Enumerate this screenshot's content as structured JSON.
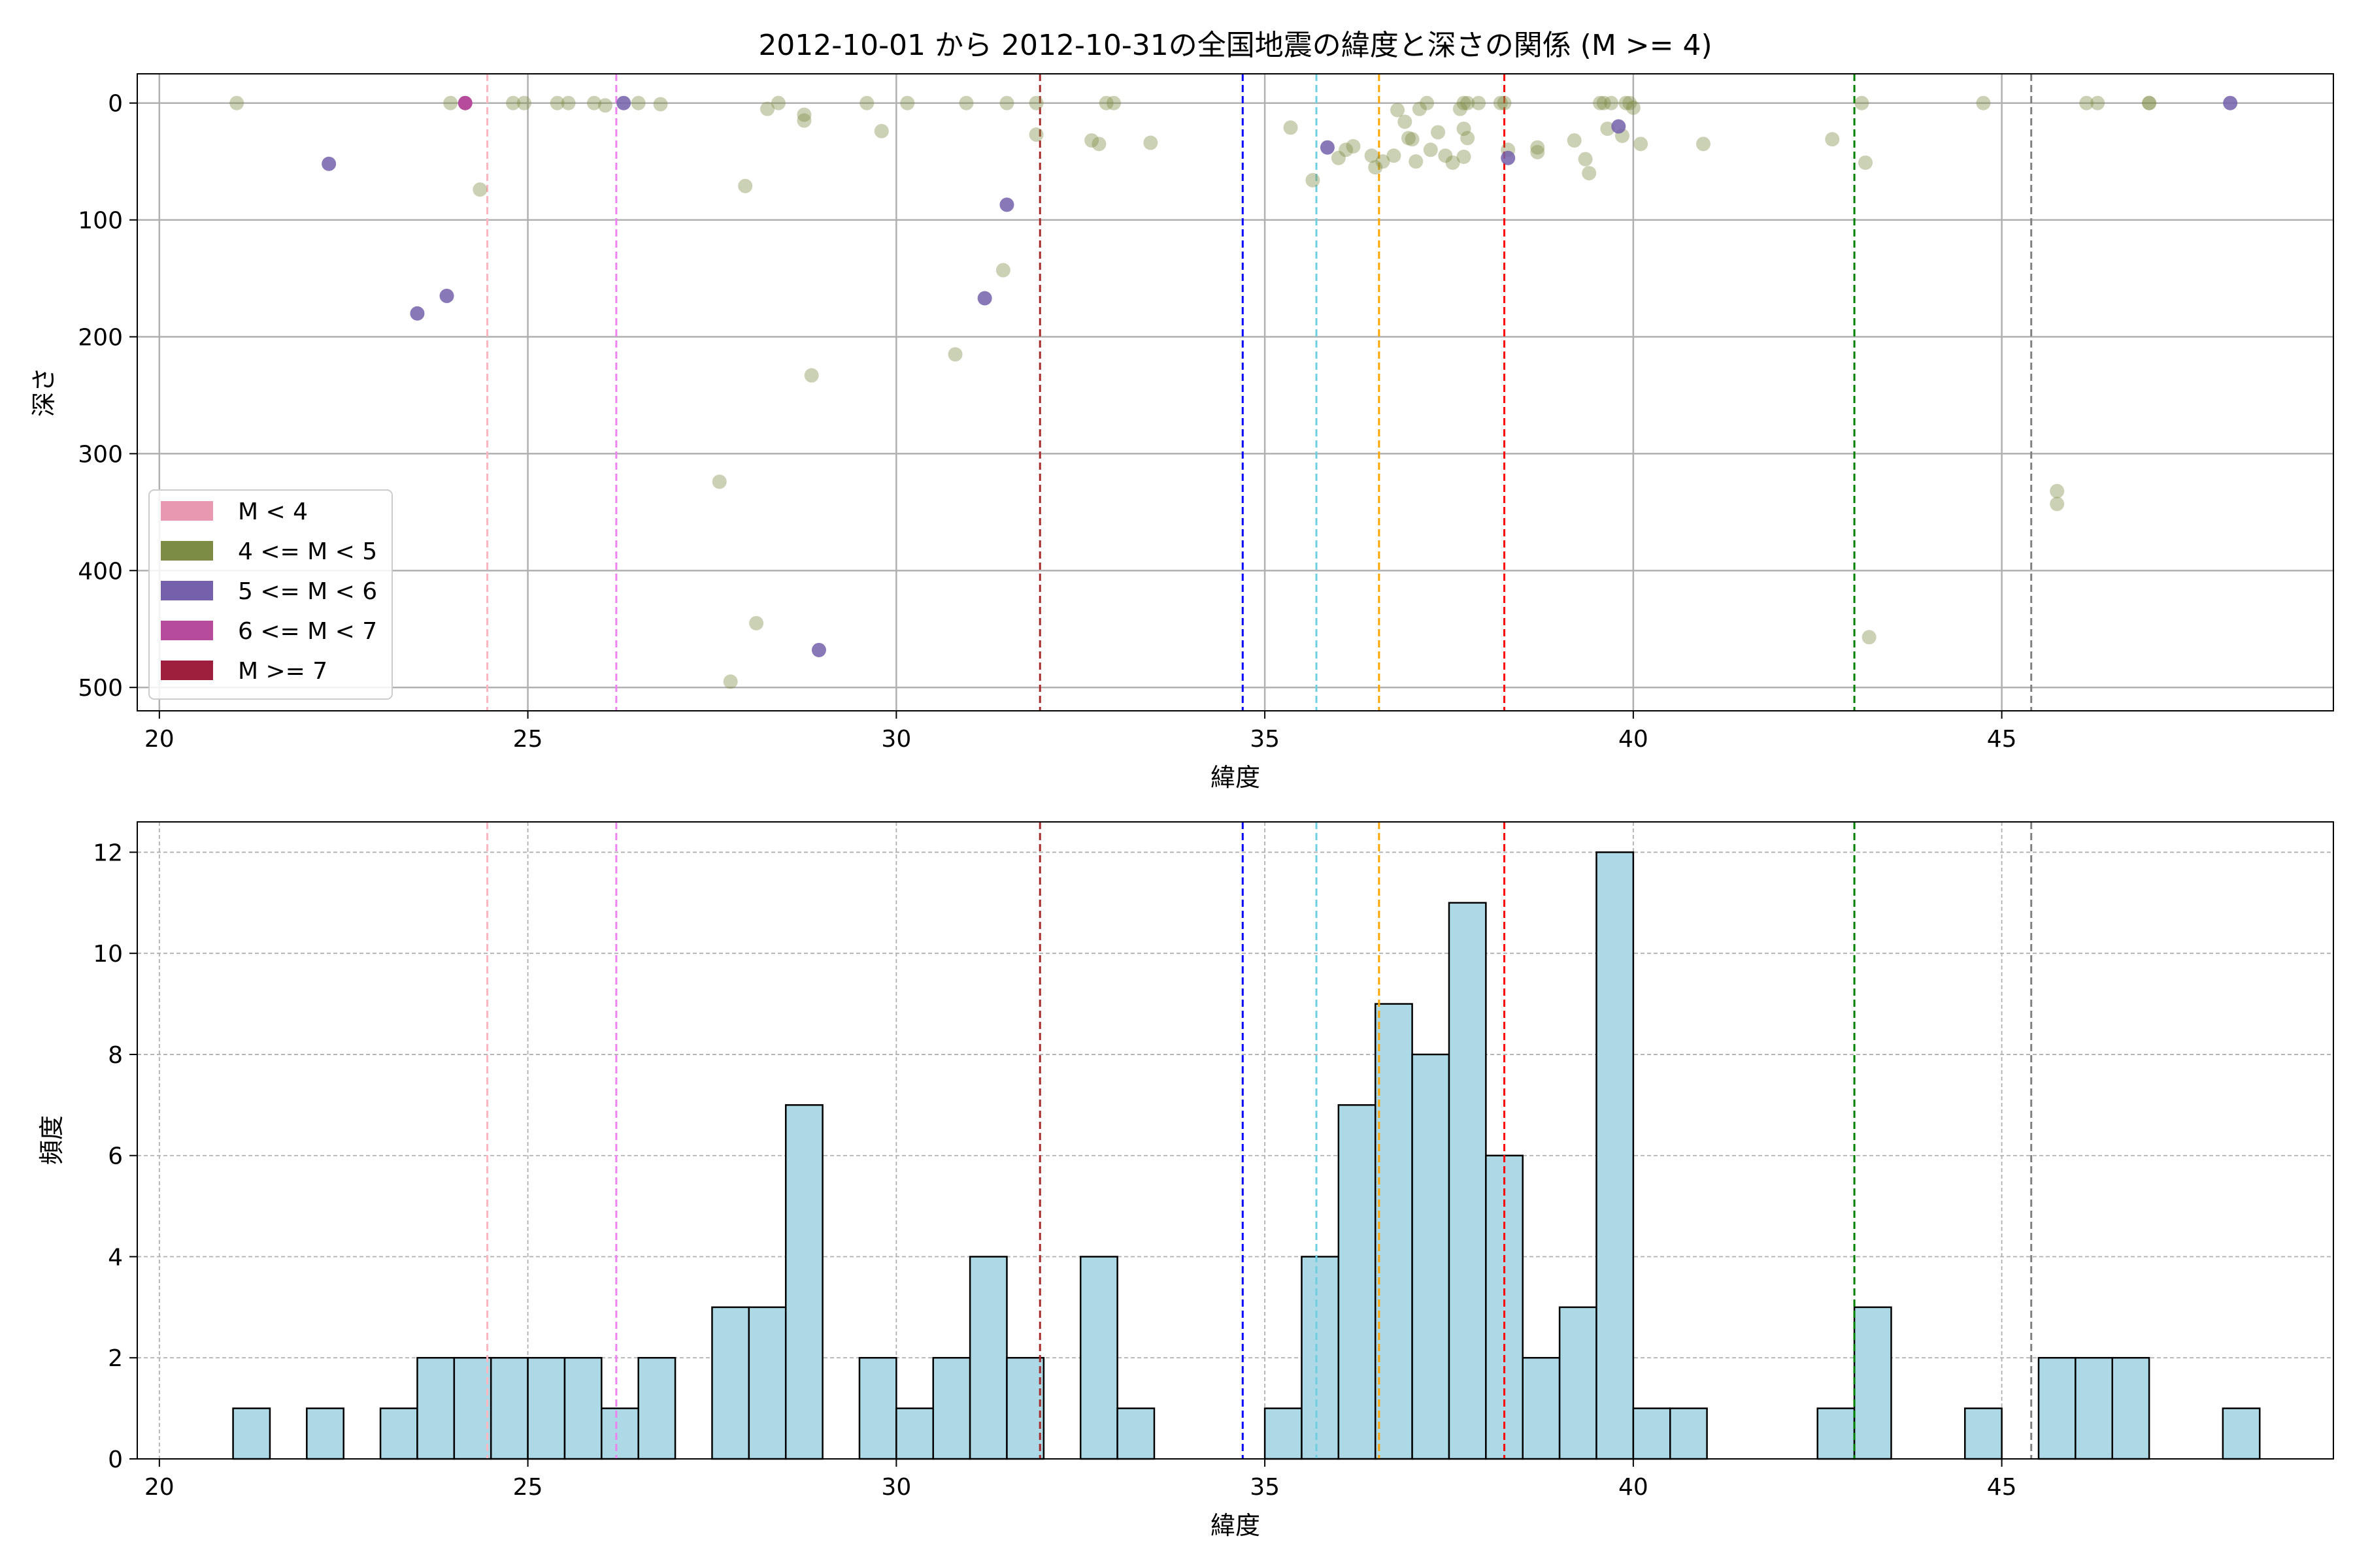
{
  "title": "2012-10-01 から 2012-10-31の全国地震の緯度と深さの関係 (M >= 4)",
  "chart_data": [
    {
      "type": "scatter",
      "xlabel": "緯度",
      "ylabel": "深さ",
      "xlim": [
        19.7,
        49.5
      ],
      "ylim": [
        520,
        -25
      ],
      "y_inverted": true,
      "grid": true,
      "legend_position": "lower-left",
      "xticks": [
        20,
        25,
        30,
        35,
        40,
        45
      ],
      "yticks": [
        0,
        100,
        200,
        300,
        400,
        500
      ],
      "legend": [
        {
          "label": "M < 4",
          "color": "#e899b1"
        },
        {
          "label": "4 <= M < 5",
          "color": "#7d8c44"
        },
        {
          "label": "5 <= M < 6",
          "color": "#7460ab"
        },
        {
          "label": "6 <= M < 7",
          "color": "#b74b9b"
        },
        {
          "label": "M >= 7",
          "color": "#9e1e3e"
        }
      ],
      "reference_lines": [
        {
          "x": 24.45,
          "color": "#ffb6c1"
        },
        {
          "x": 26.2,
          "color": "#ee82ee"
        },
        {
          "x": 31.95,
          "color": "#a52a2a"
        },
        {
          "x": 34.7,
          "color": "#0000ff"
        },
        {
          "x": 35.7,
          "color": "#6fcfe0"
        },
        {
          "x": 36.55,
          "color": "#ffa500"
        },
        {
          "x": 38.25,
          "color": "#ff0000"
        },
        {
          "x": 43.0,
          "color": "#008000"
        },
        {
          "x": 45.4,
          "color": "#808080"
        }
      ],
      "series": [
        {
          "name": "4 <= M < 5",
          "color": "#7d8c44",
          "opacity": 0.4,
          "points": [
            [
              21.05,
              0
            ],
            [
              23.95,
              0
            ],
            [
              24.35,
              74
            ],
            [
              24.8,
              0
            ],
            [
              24.95,
              0
            ],
            [
              25.4,
              0
            ],
            [
              25.55,
              0
            ],
            [
              25.9,
              0
            ],
            [
              26.05,
              2
            ],
            [
              26.5,
              0
            ],
            [
              26.8,
              1
            ],
            [
              27.6,
              324
            ],
            [
              27.75,
              495
            ],
            [
              27.95,
              71
            ],
            [
              28.1,
              445
            ],
            [
              28.25,
              5
            ],
            [
              28.4,
              0
            ],
            [
              28.75,
              10
            ],
            [
              28.75,
              15
            ],
            [
              28.85,
              233
            ],
            [
              29.6,
              0
            ],
            [
              29.8,
              24
            ],
            [
              30.15,
              0
            ],
            [
              30.8,
              215
            ],
            [
              30.95,
              0
            ],
            [
              31.45,
              143
            ],
            [
              31.5,
              0
            ],
            [
              31.9,
              0
            ],
            [
              31.9,
              27
            ],
            [
              32.65,
              32
            ],
            [
              32.75,
              35
            ],
            [
              32.85,
              0
            ],
            [
              32.95,
              0
            ],
            [
              33.45,
              34
            ],
            [
              35.35,
              21
            ],
            [
              35.65,
              66
            ],
            [
              36.0,
              47
            ],
            [
              36.1,
              40
            ],
            [
              36.2,
              37
            ],
            [
              36.45,
              45
            ],
            [
              36.5,
              55
            ],
            [
              36.6,
              50
            ],
            [
              36.75,
              45
            ],
            [
              36.8,
              6
            ],
            [
              36.9,
              16
            ],
            [
              36.95,
              30
            ],
            [
              37.0,
              31
            ],
            [
              37.05,
              50
            ],
            [
              37.1,
              5
            ],
            [
              37.2,
              0
            ],
            [
              37.25,
              40
            ],
            [
              37.35,
              25
            ],
            [
              37.45,
              45
            ],
            [
              37.55,
              51
            ],
            [
              37.65,
              5
            ],
            [
              37.7,
              0
            ],
            [
              37.75,
              0
            ],
            [
              37.7,
              22
            ],
            [
              37.75,
              30
            ],
            [
              37.7,
              46
            ],
            [
              37.9,
              0
            ],
            [
              38.2,
              0
            ],
            [
              38.25,
              0
            ],
            [
              38.3,
              40
            ],
            [
              38.7,
              38
            ],
            [
              38.7,
              42
            ],
            [
              39.2,
              32
            ],
            [
              39.35,
              48
            ],
            [
              39.4,
              60
            ],
            [
              39.55,
              0
            ],
            [
              39.6,
              0
            ],
            [
              39.65,
              22
            ],
            [
              39.7,
              0
            ],
            [
              39.85,
              28
            ],
            [
              39.9,
              0
            ],
            [
              39.95,
              0
            ],
            [
              40.0,
              4
            ],
            [
              40.1,
              35
            ],
            [
              40.95,
              35
            ],
            [
              42.7,
              31
            ],
            [
              43.1,
              0
            ],
            [
              43.15,
              51
            ],
            [
              43.2,
              457
            ],
            [
              44.75,
              0
            ],
            [
              45.75,
              332
            ],
            [
              45.75,
              343
            ],
            [
              46.15,
              0
            ],
            [
              46.3,
              0
            ],
            [
              47.0,
              0
            ],
            [
              47.0,
              0
            ]
          ]
        },
        {
          "name": "5 <= M < 6",
          "color": "#7460ab",
          "opacity": 0.85,
          "points": [
            [
              22.3,
              52
            ],
            [
              23.5,
              180
            ],
            [
              23.9,
              165
            ],
            [
              26.3,
              0
            ],
            [
              28.95,
              468
            ],
            [
              31.2,
              167
            ],
            [
              31.5,
              87
            ],
            [
              35.85,
              38
            ],
            [
              38.3,
              47
            ],
            [
              39.8,
              20
            ],
            [
              48.1,
              0
            ]
          ]
        },
        {
          "name": "6 <= M < 7",
          "color": "#b74b9b",
          "opacity": 1.0,
          "points": [
            [
              24.15,
              0
            ]
          ]
        }
      ]
    },
    {
      "type": "bar",
      "xlabel": "緯度",
      "ylabel": "頻度",
      "xlim": [
        19.7,
        49.5
      ],
      "ylim": [
        0,
        12.6
      ],
      "grid": "dashed",
      "xticks": [
        20,
        25,
        30,
        35,
        40,
        45
      ],
      "yticks": [
        0,
        2,
        4,
        6,
        8,
        10,
        12
      ],
      "bar_color": "#add8e6",
      "bar_edge_color": "#000000",
      "bin_width": 0.5,
      "bins": [
        [
          21,
          1
        ],
        [
          22,
          1
        ],
        [
          23,
          1
        ],
        [
          23.5,
          2
        ],
        [
          24,
          2
        ],
        [
          24.5,
          2
        ],
        [
          25,
          2
        ],
        [
          25.5,
          2
        ],
        [
          26,
          1
        ],
        [
          26.5,
          2
        ],
        [
          27.5,
          3
        ],
        [
          28,
          3
        ],
        [
          28.5,
          7
        ],
        [
          29.5,
          2
        ],
        [
          30,
          1
        ],
        [
          30.5,
          2
        ],
        [
          31,
          4
        ],
        [
          31.5,
          2
        ],
        [
          32.5,
          4
        ],
        [
          33,
          1
        ],
        [
          35,
          1
        ],
        [
          35.5,
          4
        ],
        [
          36,
          7
        ],
        [
          36.5,
          9
        ],
        [
          37,
          8
        ],
        [
          37.5,
          11
        ],
        [
          38,
          6
        ],
        [
          38.5,
          2
        ],
        [
          39,
          3
        ],
        [
          39.5,
          12
        ],
        [
          40,
          1
        ],
        [
          40.5,
          1
        ],
        [
          42.5,
          1
        ],
        [
          43,
          3
        ],
        [
          44.5,
          1
        ],
        [
          45.5,
          2
        ],
        [
          46,
          2
        ],
        [
          46.5,
          2
        ],
        [
          48,
          1
        ]
      ],
      "reference_lines": [
        {
          "x": 24.45,
          "color": "#ffb6c1"
        },
        {
          "x": 26.2,
          "color": "#ee82ee"
        },
        {
          "x": 31.95,
          "color": "#a52a2a"
        },
        {
          "x": 34.7,
          "color": "#0000ff"
        },
        {
          "x": 35.7,
          "color": "#6fcfe0"
        },
        {
          "x": 36.55,
          "color": "#ffa500"
        },
        {
          "x": 38.25,
          "color": "#ff0000"
        },
        {
          "x": 43.0,
          "color": "#008000"
        },
        {
          "x": 45.4,
          "color": "#808080"
        }
      ]
    }
  ]
}
